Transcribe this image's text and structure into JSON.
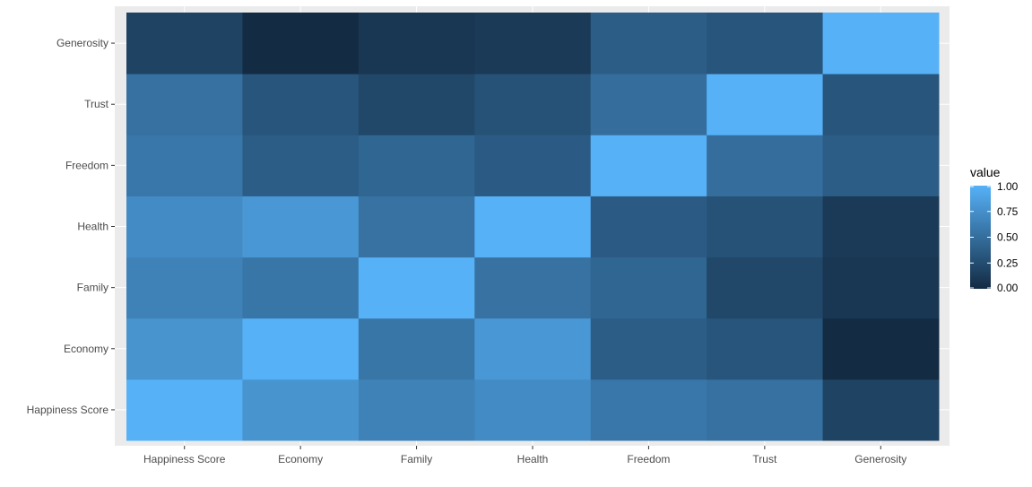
{
  "chart_data": {
    "type": "heatmap",
    "title": "",
    "xlabel": "",
    "ylabel": "",
    "x_categories": [
      "Happiness Score",
      "Economy",
      "Family",
      "Health",
      "Freedom",
      "Trust",
      "Generosity"
    ],
    "y_categories": [
      "Happiness Score",
      "Economy",
      "Family",
      "Health",
      "Freedom",
      "Trust",
      "Generosity"
    ],
    "values": [
      [
        1.0,
        0.78,
        0.65,
        0.72,
        0.57,
        0.52,
        0.18
      ],
      [
        0.78,
        1.0,
        0.56,
        0.81,
        0.37,
        0.31,
        -0.01
      ],
      [
        0.65,
        0.56,
        1.0,
        0.53,
        0.44,
        0.21,
        0.09
      ],
      [
        0.72,
        0.81,
        0.53,
        1.0,
        0.36,
        0.29,
        0.11
      ],
      [
        0.57,
        0.37,
        0.44,
        0.36,
        1.0,
        0.5,
        0.37
      ],
      [
        0.52,
        0.31,
        0.21,
        0.29,
        0.5,
        1.0,
        0.31
      ],
      [
        0.18,
        -0.01,
        0.09,
        0.11,
        0.37,
        0.31,
        1.0
      ]
    ],
    "legend": {
      "title": "value",
      "ticks": [
        "1.00",
        "0.75",
        "0.50",
        "0.25",
        "0.00"
      ],
      "tick_values": [
        1.0,
        0.75,
        0.5,
        0.25,
        0.0
      ],
      "placement": "right"
    },
    "color_scale": {
      "low": "#132B43",
      "high": "#56B1F7"
    },
    "panel_background": "#EBEBEB",
    "gridline_color": "#FFFFFF",
    "grid": true
  }
}
